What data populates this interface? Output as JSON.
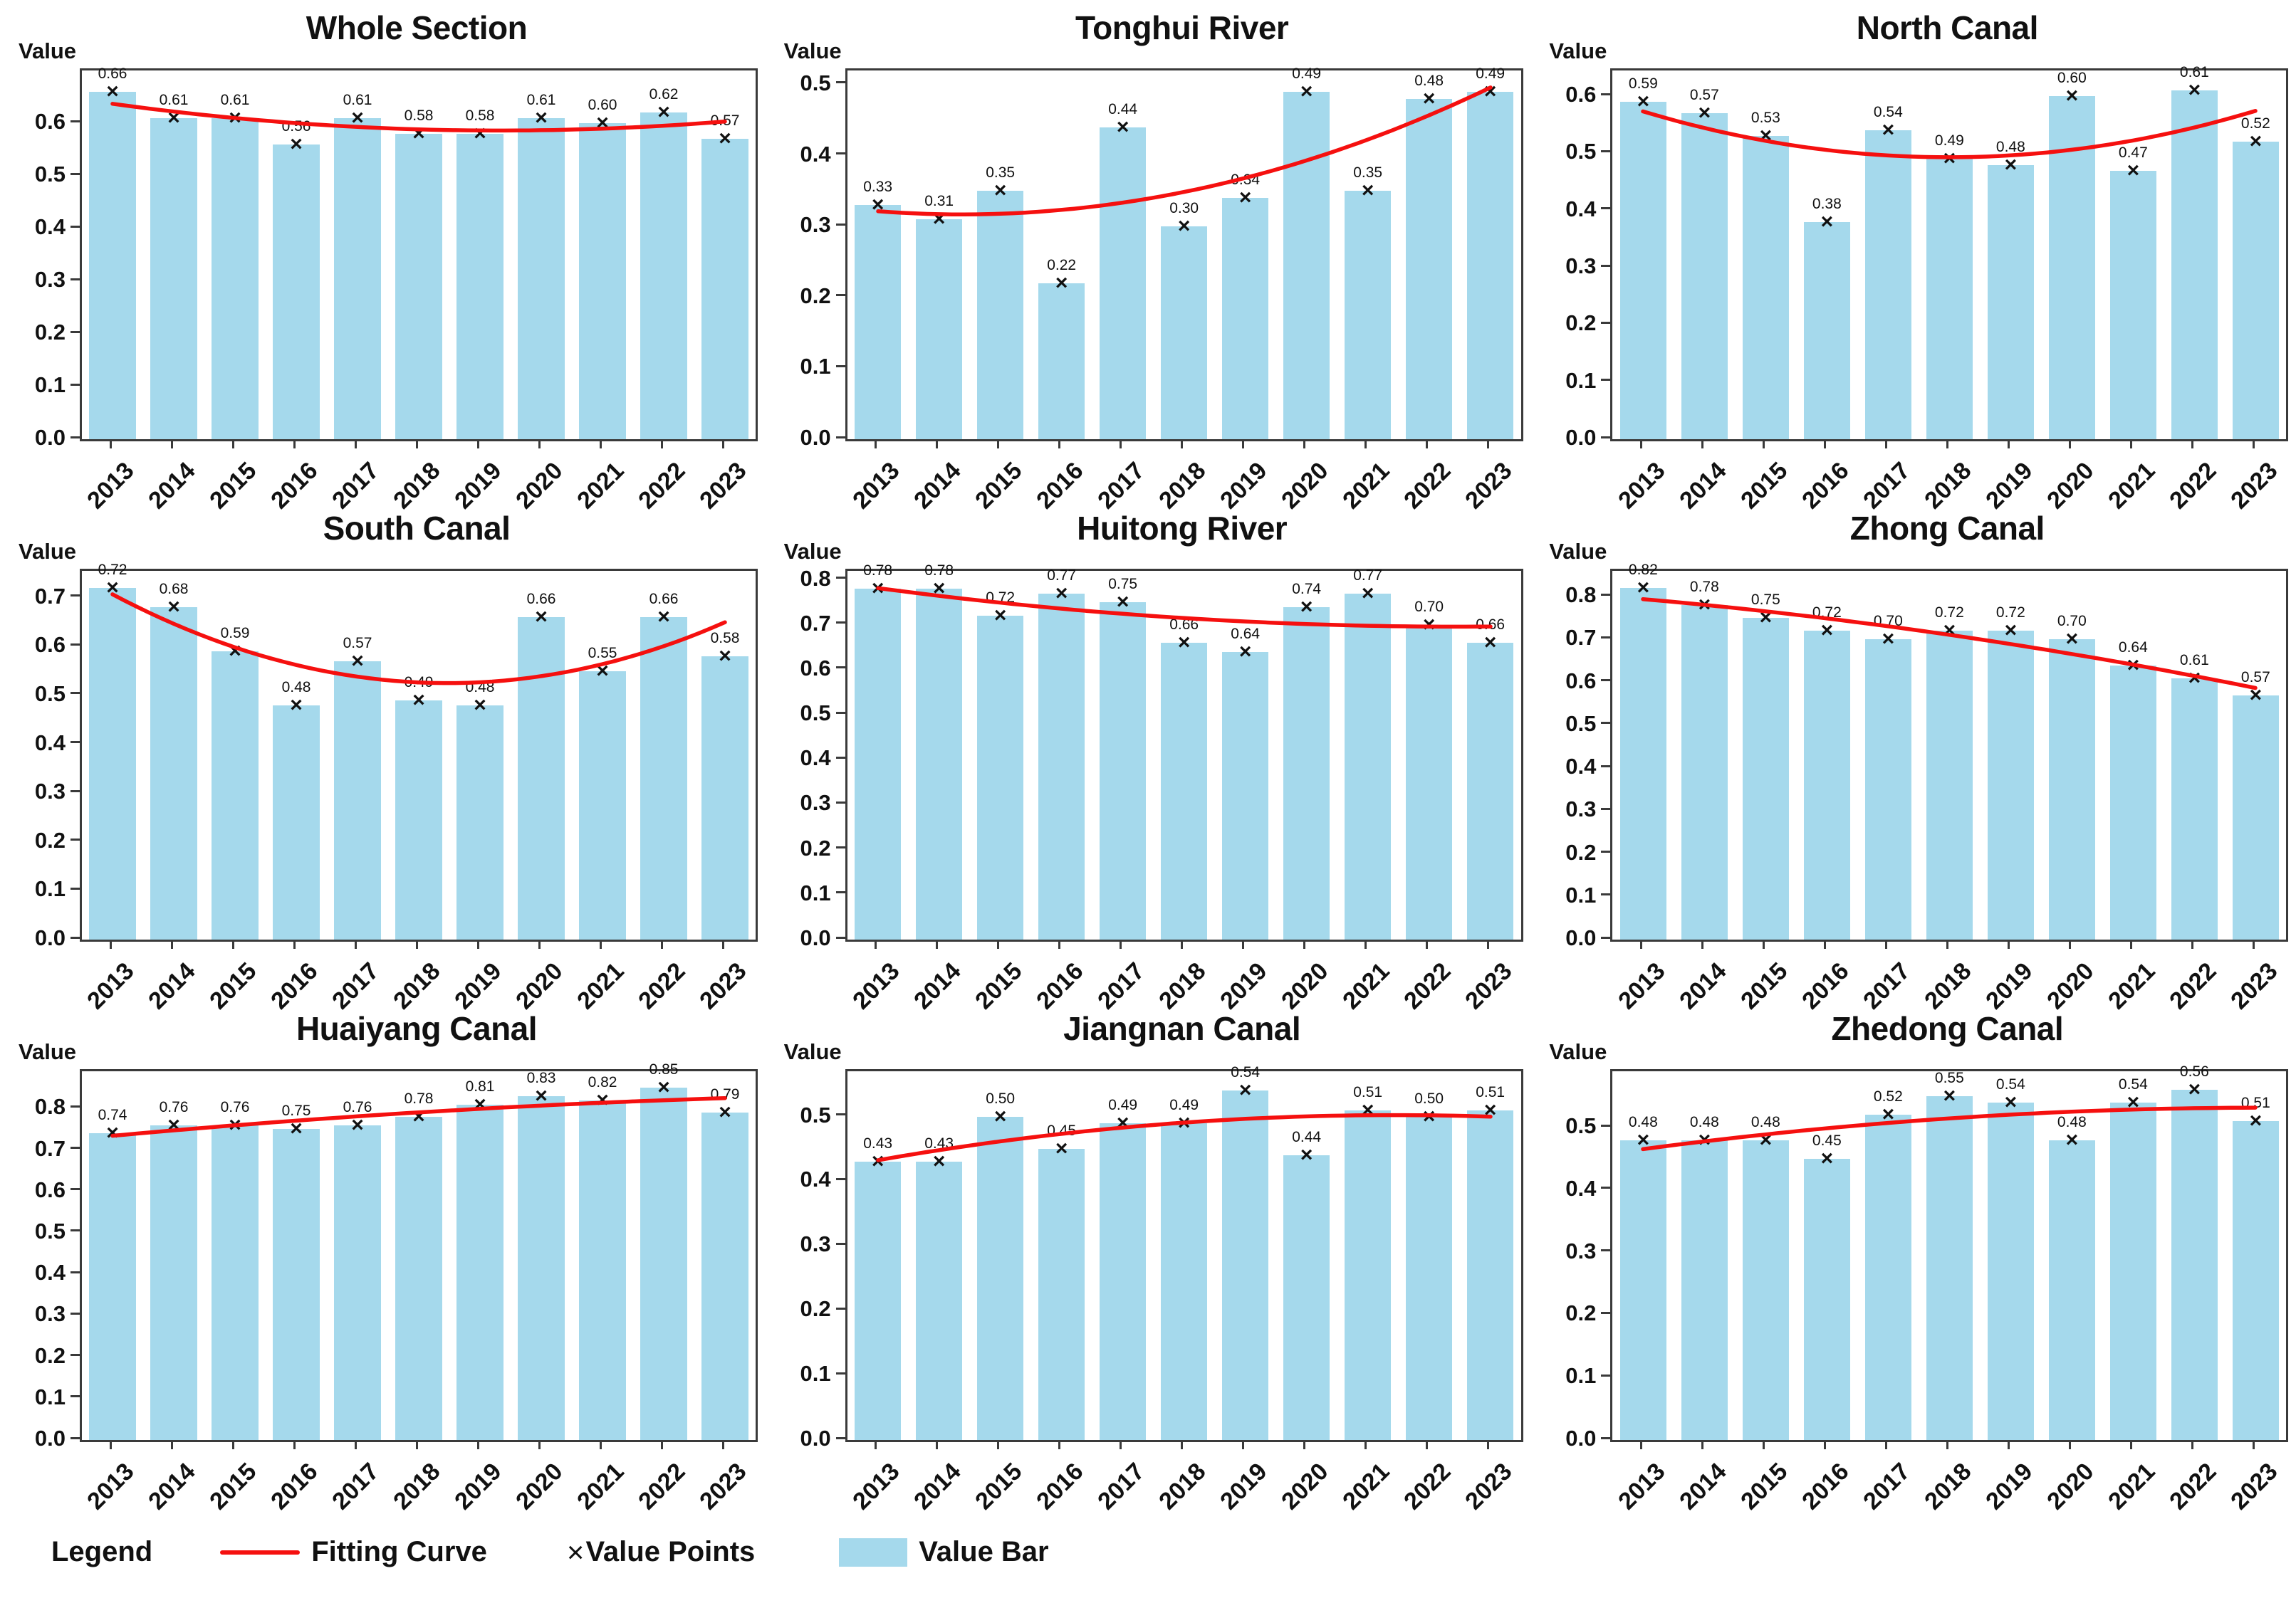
{
  "marker_char": "×",
  "colors": {
    "bar": "#A5D9EC",
    "curve": "#F5100F",
    "marker": "#111111",
    "axis": "#3a3a3a",
    "background": "#FFFFFF"
  },
  "legend": {
    "label": "Legend",
    "fitting_curve": "Fitting Curve",
    "value_points": "Value Points",
    "value_bar": "Value Bar",
    "position": "bottom-left"
  },
  "chart_data": [
    {
      "type": "bar",
      "title": "Whole Section",
      "ylabel": "Value",
      "categories": [
        "2013",
        "2014",
        "2015",
        "2016",
        "2017",
        "2018",
        "2019",
        "2020",
        "2021",
        "2022",
        "2023"
      ],
      "values": [
        0.66,
        0.61,
        0.61,
        0.56,
        0.61,
        0.58,
        0.58,
        0.61,
        0.6,
        0.62,
        0.57
      ],
      "ylim": [
        0,
        0.7
      ],
      "yticks": [
        0.0,
        0.1,
        0.2,
        0.3,
        0.4,
        0.5,
        0.6
      ],
      "grid": false,
      "x_tick_rotation": 45,
      "fit": "quadratic"
    },
    {
      "type": "bar",
      "title": "Tonghui River",
      "ylabel": "Value",
      "categories": [
        "2013",
        "2014",
        "2015",
        "2016",
        "2017",
        "2018",
        "2019",
        "2020",
        "2021",
        "2022",
        "2023"
      ],
      "values": [
        0.33,
        0.31,
        0.35,
        0.22,
        0.44,
        0.3,
        0.34,
        0.49,
        0.35,
        0.48,
        0.49
      ],
      "ylim": [
        0,
        0.52
      ],
      "yticks": [
        0.0,
        0.1,
        0.2,
        0.3,
        0.4,
        0.5
      ],
      "grid": false,
      "x_tick_rotation": 45,
      "fit": "quadratic"
    },
    {
      "type": "bar",
      "title": "North Canal",
      "ylabel": "Value",
      "categories": [
        "2013",
        "2014",
        "2015",
        "2016",
        "2017",
        "2018",
        "2019",
        "2020",
        "2021",
        "2022",
        "2023"
      ],
      "values": [
        0.59,
        0.57,
        0.53,
        0.38,
        0.54,
        0.49,
        0.48,
        0.6,
        0.47,
        0.61,
        0.52
      ],
      "ylim": [
        0,
        0.645
      ],
      "yticks": [
        0.0,
        0.1,
        0.2,
        0.3,
        0.4,
        0.5,
        0.6
      ],
      "grid": false,
      "x_tick_rotation": 45,
      "fit": "quadratic"
    },
    {
      "type": "bar",
      "title": "South Canal",
      "ylabel": "Value",
      "categories": [
        "2013",
        "2014",
        "2015",
        "2016",
        "2017",
        "2018",
        "2019",
        "2020",
        "2021",
        "2022",
        "2023"
      ],
      "values": [
        0.72,
        0.68,
        0.59,
        0.48,
        0.57,
        0.49,
        0.48,
        0.66,
        0.55,
        0.66,
        0.58
      ],
      "ylim": [
        0,
        0.755
      ],
      "yticks": [
        0.0,
        0.1,
        0.2,
        0.3,
        0.4,
        0.5,
        0.6,
        0.7
      ],
      "grid": false,
      "x_tick_rotation": 45,
      "fit": "quadratic"
    },
    {
      "type": "bar",
      "title": "Huitong River",
      "ylabel": "Value",
      "categories": [
        "2013",
        "2014",
        "2015",
        "2016",
        "2017",
        "2018",
        "2019",
        "2020",
        "2021",
        "2022",
        "2023"
      ],
      "values": [
        0.78,
        0.78,
        0.72,
        0.77,
        0.75,
        0.66,
        0.64,
        0.74,
        0.77,
        0.7,
        0.66
      ],
      "ylim": [
        0,
        0.82
      ],
      "yticks": [
        0.0,
        0.1,
        0.2,
        0.3,
        0.4,
        0.5,
        0.6,
        0.7,
        0.8
      ],
      "grid": false,
      "x_tick_rotation": 45,
      "fit": "quadratic"
    },
    {
      "type": "bar",
      "title": "Zhong Canal",
      "ylabel": "Value",
      "categories": [
        "2013",
        "2014",
        "2015",
        "2016",
        "2017",
        "2018",
        "2019",
        "2020",
        "2021",
        "2022",
        "2023"
      ],
      "values": [
        0.82,
        0.78,
        0.75,
        0.72,
        0.7,
        0.72,
        0.72,
        0.7,
        0.64,
        0.61,
        0.57
      ],
      "ylim": [
        0,
        0.86
      ],
      "yticks": [
        0.0,
        0.1,
        0.2,
        0.3,
        0.4,
        0.5,
        0.6,
        0.7,
        0.8
      ],
      "grid": false,
      "x_tick_rotation": 45,
      "fit": "quadratic"
    },
    {
      "type": "bar",
      "title": "Huaiyang Canal",
      "ylabel": "Value",
      "categories": [
        "2013",
        "2014",
        "2015",
        "2016",
        "2017",
        "2018",
        "2019",
        "2020",
        "2021",
        "2022",
        "2023"
      ],
      "values": [
        0.74,
        0.76,
        0.76,
        0.75,
        0.76,
        0.78,
        0.81,
        0.83,
        0.82,
        0.85,
        0.79
      ],
      "ylim": [
        0,
        0.89
      ],
      "yticks": [
        0.0,
        0.1,
        0.2,
        0.3,
        0.4,
        0.5,
        0.6,
        0.7,
        0.8
      ],
      "grid": false,
      "x_tick_rotation": 45,
      "fit": "quadratic"
    },
    {
      "type": "bar",
      "title": "Jiangnan Canal",
      "ylabel": "Value",
      "categories": [
        "2013",
        "2014",
        "2015",
        "2016",
        "2017",
        "2018",
        "2019",
        "2020",
        "2021",
        "2022",
        "2023"
      ],
      "values": [
        0.43,
        0.43,
        0.5,
        0.45,
        0.49,
        0.49,
        0.54,
        0.44,
        0.51,
        0.5,
        0.51
      ],
      "ylim": [
        0,
        0.57
      ],
      "yticks": [
        0.0,
        0.1,
        0.2,
        0.3,
        0.4,
        0.5
      ],
      "grid": false,
      "x_tick_rotation": 45,
      "fit": "quadratic"
    },
    {
      "type": "bar",
      "title": "Zhedong Canal",
      "ylabel": "Value",
      "categories": [
        "2013",
        "2014",
        "2015",
        "2016",
        "2017",
        "2018",
        "2019",
        "2020",
        "2021",
        "2022",
        "2023"
      ],
      "values": [
        0.48,
        0.48,
        0.48,
        0.45,
        0.52,
        0.55,
        0.54,
        0.48,
        0.54,
        0.56,
        0.51
      ],
      "ylim": [
        0,
        0.59
      ],
      "yticks": [
        0.0,
        0.1,
        0.2,
        0.3,
        0.4,
        0.5
      ],
      "grid": false,
      "x_tick_rotation": 45,
      "fit": "quadratic"
    }
  ]
}
